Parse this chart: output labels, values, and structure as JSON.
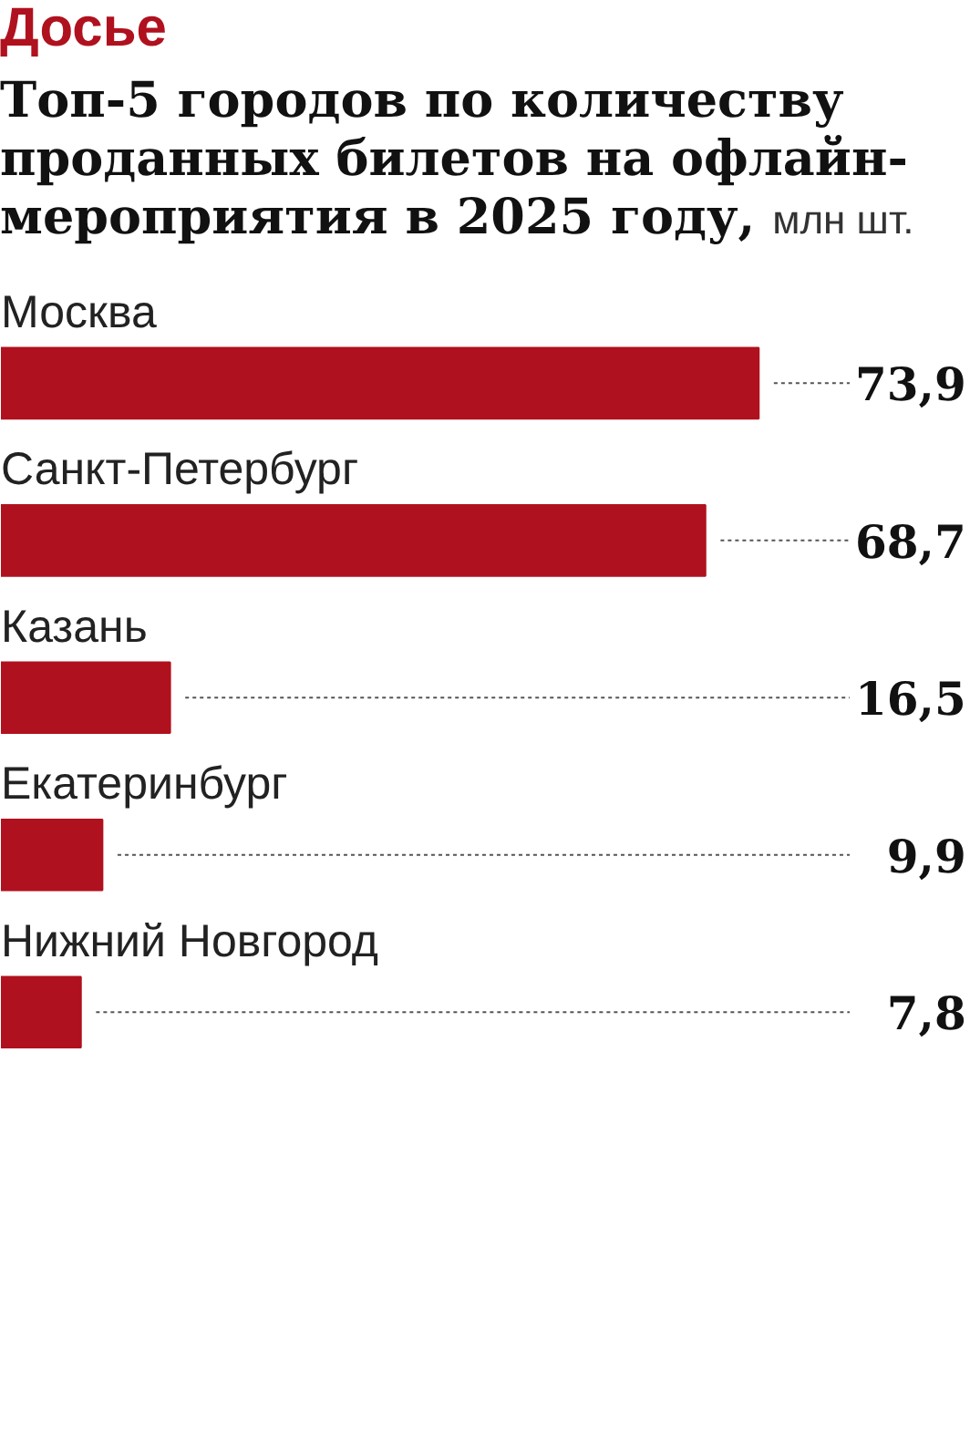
{
  "chart_data": {
    "type": "bar",
    "orientation": "horizontal",
    "data_labels": true,
    "annotations": [
      "Досье"
    ],
    "title": "Топ-5 городов по количеству проданных билетов на офлайн-мероприятия в 2025 году,",
    "subtitle": "млн шт.",
    "categories": [
      "Москва",
      "Санкт-Петербург",
      "Казань",
      "Екатеринбург",
      "Нижний Новгород"
    ],
    "values": [
      73.9,
      68.7,
      16.5,
      9.9,
      7.8
    ],
    "value_labels": [
      "73,9",
      "68,7",
      "16,5",
      "9,9",
      "7,8"
    ],
    "color": "#b0111e"
  }
}
